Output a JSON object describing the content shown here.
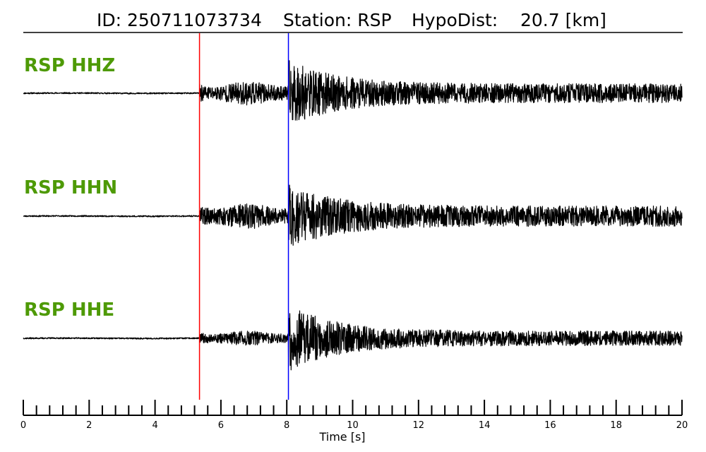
{
  "header": {
    "id_text": "ID: 250711073734",
    "station_text": "Station: RSP",
    "dist_text": "HypoDist:    20.7 [km]"
  },
  "chart_data": {
    "type": "line",
    "title": "ID: 250711073734   Station: RSP   HypoDist:    20.7 [km]",
    "xlabel": "Time [s]",
    "ylabel": "",
    "xlim": [
      0,
      20
    ],
    "grid": false,
    "label_color": "#4e9a06",
    "trace_color": "#000000",
    "p_pick": {
      "time": 5.35,
      "color": "#ff0000"
    },
    "s_pick": {
      "time": 8.05,
      "color": "#0000ff"
    },
    "x_major_ticks": [
      0,
      2,
      4,
      6,
      8,
      10,
      12,
      14,
      16,
      18,
      20
    ],
    "x_minor_step": 0.4,
    "series": [
      {
        "name": "RSP HHZ",
        "noise_amp": 0.02,
        "p_amp": 0.35,
        "s_amp": 1.0,
        "coda_amp": 0.28,
        "seed": 11
      },
      {
        "name": "RSP HHN",
        "noise_amp": 0.02,
        "p_amp": 0.38,
        "s_amp": 1.0,
        "coda_amp": 0.3,
        "seed": 23
      },
      {
        "name": "RSP HHE",
        "noise_amp": 0.02,
        "p_amp": 0.22,
        "s_amp": 1.0,
        "coda_amp": 0.22,
        "seed": 37
      }
    ]
  }
}
